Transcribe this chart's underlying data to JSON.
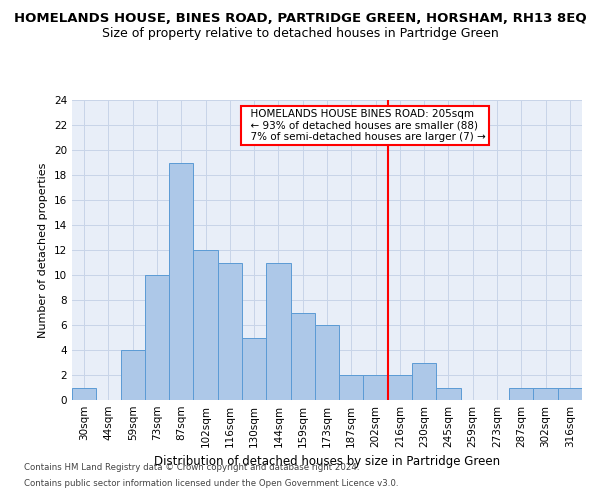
{
  "title": "HOMELANDS HOUSE, BINES ROAD, PARTRIDGE GREEN, HORSHAM, RH13 8EQ",
  "subtitle": "Size of property relative to detached houses in Partridge Green",
  "xlabel": "Distribution of detached houses by size in Partridge Green",
  "ylabel": "Number of detached properties",
  "bins": [
    "30sqm",
    "44sqm",
    "59sqm",
    "73sqm",
    "87sqm",
    "102sqm",
    "116sqm",
    "130sqm",
    "144sqm",
    "159sqm",
    "173sqm",
    "187sqm",
    "202sqm",
    "216sqm",
    "230sqm",
    "245sqm",
    "259sqm",
    "273sqm",
    "287sqm",
    "302sqm",
    "316sqm"
  ],
  "counts": [
    1,
    0,
    4,
    10,
    19,
    12,
    11,
    5,
    11,
    7,
    6,
    2,
    2,
    2,
    3,
    1,
    0,
    0,
    1,
    1,
    1
  ],
  "bar_color": "#adc8e8",
  "bar_edge_color": "#5b9bd5",
  "vline_color": "red",
  "annotation_text": "  HOMELANDS HOUSE BINES ROAD: 205sqm\n  ← 93% of detached houses are smaller (88)\n  7% of semi-detached houses are larger (7) →",
  "annotation_box_color": "white",
  "annotation_box_edge": "red",
  "ylim": [
    0,
    24
  ],
  "yticks": [
    0,
    2,
    4,
    6,
    8,
    10,
    12,
    14,
    16,
    18,
    20,
    22,
    24
  ],
  "footer1": "Contains HM Land Registry data © Crown copyright and database right 2024.",
  "footer2": "Contains public sector information licensed under the Open Government Licence v3.0.",
  "title_fontsize": 9.5,
  "subtitle_fontsize": 9,
  "ylabel_fontsize": 8,
  "xlabel_fontsize": 8.5,
  "tick_fontsize": 7.5,
  "grid_color": "#c8d4e8",
  "background_color": "#e8eef8"
}
